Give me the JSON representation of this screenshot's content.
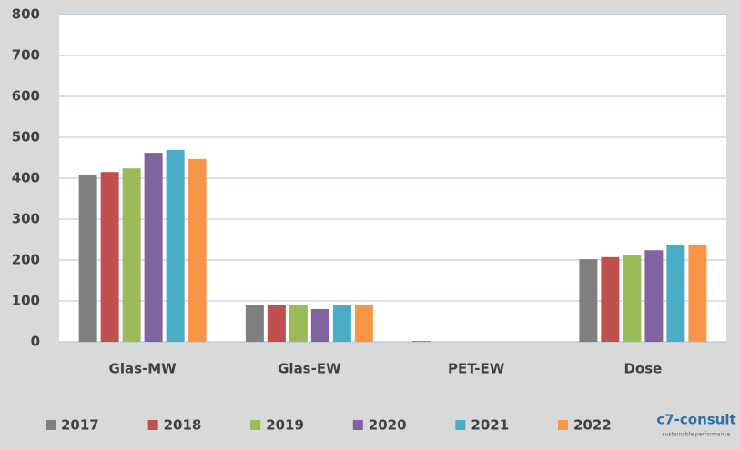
{
  "chart_data": {
    "type": "bar",
    "categories": [
      "Glas-MW",
      "Glas-EW",
      "PET-EW",
      "Dose"
    ],
    "series": [
      {
        "name": "2017",
        "color": "#7f7f7f",
        "values": [
          407,
          89,
          2,
          202
        ]
      },
      {
        "name": "2018",
        "color": "#c0504d",
        "values": [
          415,
          91,
          0,
          207
        ]
      },
      {
        "name": "2019",
        "color": "#9bbb59",
        "values": [
          424,
          89,
          0,
          211
        ]
      },
      {
        "name": "2020",
        "color": "#8064a2",
        "values": [
          462,
          80,
          0,
          224
        ]
      },
      {
        "name": "2021",
        "color": "#4bacc6",
        "values": [
          469,
          89,
          0,
          238
        ]
      },
      {
        "name": "2022",
        "color": "#f79646",
        "values": [
          447,
          89,
          0,
          238
        ]
      }
    ],
    "ylim": [
      0,
      800
    ],
    "yticks": [
      0,
      100,
      200,
      300,
      400,
      500,
      600,
      700,
      800
    ],
    "grid": true,
    "legend": "bottom"
  },
  "logo": {
    "name": "c7-consult",
    "tagline": "sustainable performance"
  }
}
